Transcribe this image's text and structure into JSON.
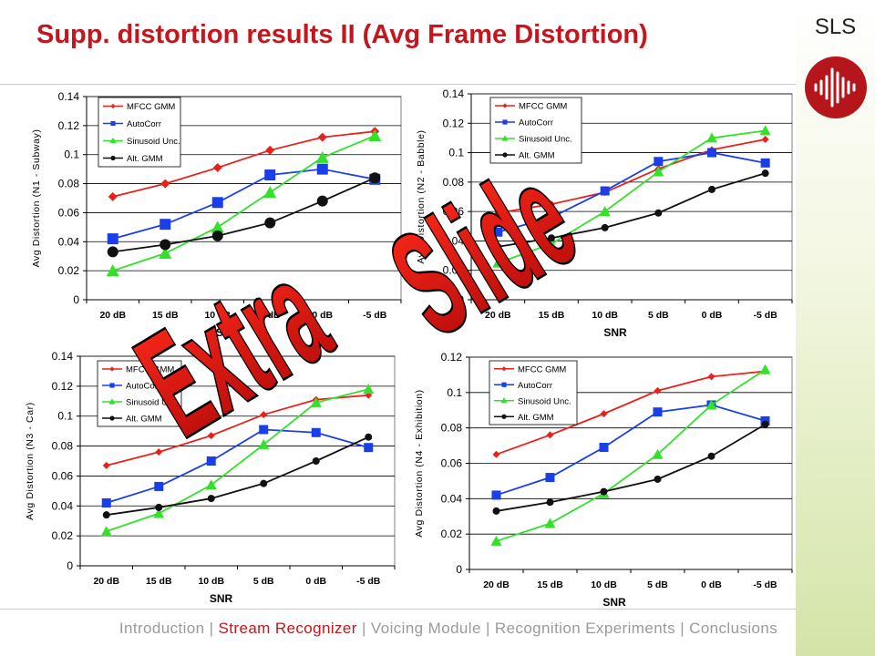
{
  "slide": {
    "title": "Supp. distortion results II (Avg Frame Distortion)",
    "brand": "SLS",
    "watermark": [
      "Extra",
      "Slide"
    ]
  },
  "footer": {
    "items": [
      {
        "label": "Introduction",
        "active": false
      },
      {
        "label": "Stream Recognizer",
        "active": true
      },
      {
        "label": "Voicing Module",
        "active": false
      },
      {
        "label": "Recognition Experiments",
        "active": false
      },
      {
        "label": "Conclusions",
        "active": false
      }
    ],
    "separator": " | "
  },
  "colors": {
    "MFCC GMM": "#e8221b",
    "AutoCorr": "#1a3fe8",
    "Sinusoid Unc.": "#33e02a",
    "Alt. GMM": "#111111",
    "title": "#c4161c"
  },
  "chart_data": [
    {
      "type": "line",
      "ylabel": "Avg Distortion (N1 - Subway)",
      "xlabel": "SNR",
      "categories": [
        "20 dB",
        "15 dB",
        "10 dB",
        "5 dB",
        "0 dB",
        "-5 dB"
      ],
      "ylim": [
        0,
        0.14
      ],
      "yticks": [
        "0",
        "0.02",
        "0.04",
        "0.06",
        "0.08",
        "0.1",
        "0.12",
        "0.14"
      ],
      "grid": true,
      "legend_position": "top-left",
      "series": [
        {
          "name": "MFCC GMM",
          "marker": "diamond",
          "values": [
            0.071,
            0.08,
            0.091,
            0.103,
            0.112,
            0.116
          ]
        },
        {
          "name": "AutoCorr",
          "marker": "square",
          "values": [
            0.042,
            0.052,
            0.067,
            0.086,
            0.09,
            0.083
          ]
        },
        {
          "name": "Sinusoid Unc.",
          "marker": "triangle",
          "values": [
            0.02,
            0.032,
            0.05,
            0.074,
            0.098,
            0.113
          ]
        },
        {
          "name": "Alt. GMM",
          "marker": "circle",
          "values": [
            0.033,
            0.038,
            0.044,
            0.053,
            0.068,
            0.084
          ]
        }
      ]
    },
    {
      "type": "line",
      "ylabel": "Avg Distortion (N2 - Babble)",
      "xlabel": "SNR",
      "categories": [
        "20 dB",
        "15 dB",
        "10 dB",
        "5 dB",
        "0 dB",
        "-5 dB"
      ],
      "ylim": [
        0,
        0.14
      ],
      "yticks": [
        "0",
        "0.02",
        "0.04",
        "0.06",
        "0.08",
        "0.1",
        "0.12",
        "0.14"
      ],
      "grid": true,
      "legend_position": "top-left",
      "series": [
        {
          "name": "MFCC GMM",
          "marker": "diamond",
          "values": [
            0.059,
            0.065,
            0.073,
            0.089,
            0.102,
            0.109
          ]
        },
        {
          "name": "AutoCorr",
          "marker": "square",
          "values": [
            0.046,
            0.056,
            0.074,
            0.094,
            0.1,
            0.093
          ]
        },
        {
          "name": "Sinusoid Unc.",
          "marker": "triangle",
          "values": [
            0.025,
            0.038,
            0.06,
            0.087,
            0.11,
            0.115
          ]
        },
        {
          "name": "Alt. GMM",
          "marker": "circle",
          "values": [
            0.036,
            0.042,
            0.049,
            0.059,
            0.075,
            0.086
          ]
        }
      ]
    },
    {
      "type": "line",
      "ylabel": "Avg Distortion (N3 - Car)",
      "xlabel": "SNR",
      "categories": [
        "20 dB",
        "15 dB",
        "10 dB",
        "5 dB",
        "0 dB",
        "-5 dB"
      ],
      "ylim": [
        0,
        0.14
      ],
      "yticks": [
        "0",
        "0.02",
        "0.04",
        "0.06",
        "0.08",
        "0.1",
        "0.12",
        "0.14"
      ],
      "grid": true,
      "legend_position": "top-left",
      "series": [
        {
          "name": "MFCC GMM",
          "marker": "diamond",
          "values": [
            0.067,
            0.076,
            0.087,
            0.101,
            0.111,
            0.114
          ]
        },
        {
          "name": "AutoCorr",
          "marker": "square",
          "values": [
            0.042,
            0.053,
            0.07,
            0.091,
            0.089,
            0.079
          ]
        },
        {
          "name": "Sinusoid Unc.",
          "marker": "triangle",
          "values": [
            0.023,
            0.035,
            0.054,
            0.081,
            0.109,
            0.118
          ]
        },
        {
          "name": "Alt. GMM",
          "marker": "circle",
          "values": [
            0.034,
            0.039,
            0.045,
            0.055,
            0.07,
            0.086
          ]
        }
      ]
    },
    {
      "type": "line",
      "ylabel": "Avg Distortion (N4 - Exhibition)",
      "xlabel": "SNR",
      "categories": [
        "20 dB",
        "15 dB",
        "10 dB",
        "5 dB",
        "0 dB",
        "-5 dB"
      ],
      "ylim": [
        0,
        0.12
      ],
      "yticks": [
        "0",
        "0.02",
        "0.04",
        "0.06",
        "0.08",
        "0.1",
        "0.12"
      ],
      "grid": true,
      "legend_position": "top-left",
      "series": [
        {
          "name": "MFCC GMM",
          "marker": "diamond",
          "values": [
            0.065,
            0.076,
            0.088,
            0.101,
            0.109,
            0.112
          ]
        },
        {
          "name": "AutoCorr",
          "marker": "square",
          "values": [
            0.042,
            0.052,
            0.069,
            0.089,
            0.093,
            0.084
          ]
        },
        {
          "name": "Sinusoid Unc.",
          "marker": "triangle",
          "values": [
            0.016,
            0.026,
            0.043,
            0.065,
            0.093,
            0.113
          ]
        },
        {
          "name": "Alt. GMM",
          "marker": "circle",
          "values": [
            0.033,
            0.038,
            0.044,
            0.051,
            0.064,
            0.082
          ]
        }
      ]
    }
  ]
}
